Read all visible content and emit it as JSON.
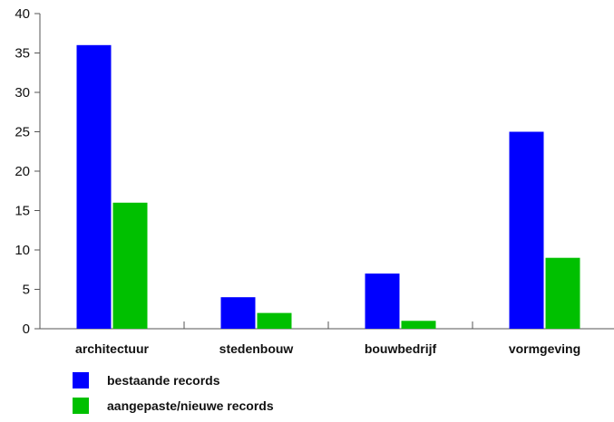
{
  "chart_data": {
    "type": "bar",
    "categories": [
      "architectuur",
      "stedenbouw",
      "bouwbedrijf",
      "vormgeving"
    ],
    "series": [
      {
        "name": "bestaande records",
        "values": [
          36,
          4,
          7,
          25
        ],
        "color": "#0000ff"
      },
      {
        "name": "aangepaste/nieuwe records",
        "values": [
          16,
          2,
          1,
          9
        ],
        "color": "#00c000"
      }
    ],
    "ylim": [
      0,
      40
    ],
    "yticks": [
      0,
      5,
      10,
      15,
      20,
      25,
      30,
      35,
      40
    ],
    "ytick_labels": [
      "0",
      "5",
      "10",
      "15",
      "20",
      "25",
      "30",
      "35",
      "40"
    ],
    "grid": false,
    "legend_position": "bottom-left",
    "title": "",
    "xlabel": "",
    "ylabel": ""
  }
}
